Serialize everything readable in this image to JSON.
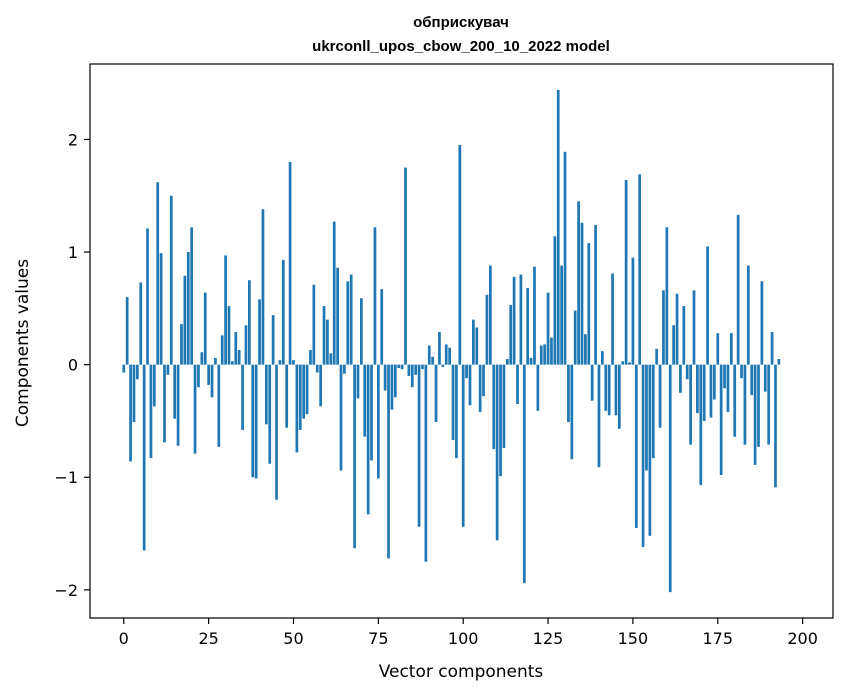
{
  "chart_data": {
    "type": "bar",
    "title_line1": "обприскувач",
    "title_line2": "ukrconll_upos_cbow_200_10_2022 model",
    "xlabel": "Vector components",
    "ylabel": "Components values",
    "xlim": [
      -9.95,
      208.95
    ],
    "ylim": [
      -2.25,
      2.67
    ],
    "xticks": [
      0,
      25,
      50,
      75,
      100,
      125,
      150,
      175,
      200
    ],
    "yticks": [
      -2,
      -1,
      0,
      1,
      2
    ],
    "ytick_labels": [
      "−2",
      "−1",
      "0",
      "1",
      "2"
    ],
    "grid": false,
    "legend": "none",
    "bar_color": "#1f77b4",
    "values": [
      -0.07,
      0.6,
      -0.86,
      -0.51,
      -0.13,
      0.73,
      -1.65,
      1.21,
      -0.83,
      -0.37,
      1.62,
      0.99,
      -0.69,
      -0.09,
      1.5,
      -0.48,
      -0.72,
      0.36,
      0.79,
      1.0,
      1.22,
      -0.79,
      -0.2,
      0.11,
      0.64,
      -0.18,
      -0.29,
      0.06,
      -0.73,
      0.26,
      0.97,
      0.52,
      0.03,
      0.29,
      0.13,
      -0.58,
      0.35,
      0.75,
      -1.0,
      -1.01,
      0.58,
      1.38,
      -0.53,
      -0.88,
      0.44,
      -1.2,
      0.04,
      0.93,
      -0.56,
      1.8,
      0.04,
      -0.78,
      -0.58,
      -0.48,
      -0.44,
      0.13,
      0.71,
      -0.07,
      -0.37,
      0.52,
      0.4,
      0.1,
      1.27,
      0.86,
      -0.94,
      -0.08,
      0.74,
      0.8,
      -1.63,
      -0.3,
      0.59,
      -0.64,
      -1.33,
      -0.85,
      1.22,
      -1.01,
      0.67,
      -0.23,
      -1.72,
      -0.4,
      -0.29,
      -0.03,
      -0.04,
      1.75,
      -0.1,
      -0.2,
      -0.09,
      -1.44,
      -0.04,
      -1.75,
      0.17,
      0.07,
      -0.51,
      0.29,
      -0.02,
      0.18,
      0.15,
      -0.67,
      -0.83,
      1.95,
      -1.44,
      -0.12,
      -0.36,
      0.4,
      0.33,
      -0.42,
      -0.28,
      0.62,
      0.88,
      -0.75,
      -1.56,
      -0.99,
      -0.74,
      0.05,
      0.53,
      0.78,
      -0.35,
      0.8,
      -1.94,
      0.68,
      0.06,
      0.87,
      -0.41,
      0.17,
      0.18,
      0.64,
      0.24,
      1.14,
      2.44,
      0.88,
      1.89,
      -0.51,
      -0.84,
      0.48,
      1.45,
      1.26,
      0.27,
      1.08,
      -0.32,
      1.24,
      -0.91,
      0.12,
      -0.41,
      -0.45,
      0.81,
      -0.45,
      -0.57,
      0.03,
      1.64,
      0.02,
      0.95,
      -1.45,
      1.69,
      -1.62,
      -0.94,
      -1.52,
      -0.83,
      0.14,
      -0.56,
      0.66,
      1.22,
      -2.02,
      0.35,
      0.63,
      -0.25,
      0.52,
      -0.13,
      -0.71,
      0.66,
      -0.43,
      -1.07,
      -0.5,
      1.05,
      -0.47,
      -0.31,
      0.28,
      -0.98,
      -0.21,
      -0.42,
      0.28,
      -0.64,
      1.33,
      -0.12,
      -0.71,
      0.88,
      -0.27,
      -0.89,
      -0.73,
      0.74,
      -0.24,
      -0.71,
      0.29,
      -1.09,
      0.05
    ]
  }
}
